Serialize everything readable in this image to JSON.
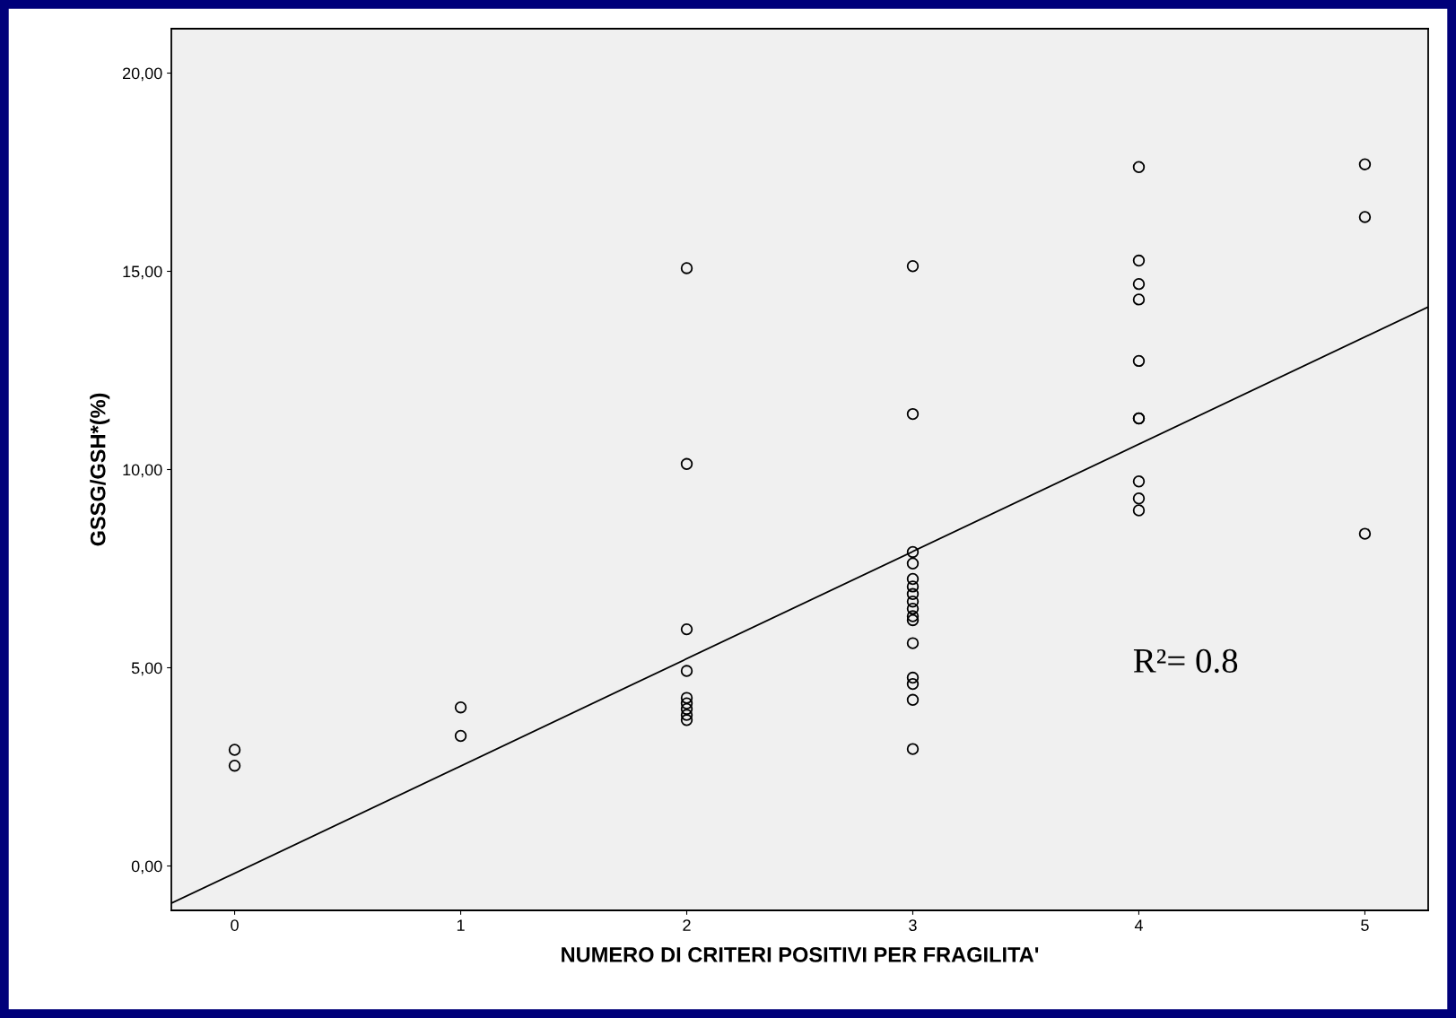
{
  "chart_data": {
    "type": "scatter",
    "xlabel": "NUMERO DI CRITERI POSITIVI PER FRAGILITA'",
    "ylabel": "GSSG/GSH*(%)",
    "annotations": [
      "R²= 0.8"
    ],
    "series": [
      {
        "color": "#000000",
        "marker": "circle",
        "x": [
          0,
          0,
          1,
          1,
          2,
          2,
          2,
          2,
          2,
          2,
          2,
          2,
          2,
          3,
          3,
          3,
          3,
          3,
          3,
          3,
          3,
          3,
          3,
          3,
          3,
          3,
          3,
          3,
          3,
          4,
          4,
          4,
          4,
          4,
          4,
          4,
          4,
          4,
          4,
          5,
          5,
          5
        ],
        "values": [
          2.93,
          2.53,
          4.0,
          3.28,
          15.08,
          10.14,
          5.97,
          4.92,
          4.24,
          4.1,
          3.96,
          3.81,
          3.68,
          15.13,
          11.4,
          7.92,
          7.63,
          7.24,
          7.05,
          6.86,
          6.67,
          6.49,
          6.3,
          6.2,
          5.62,
          4.75,
          4.59,
          4.19,
          2.95,
          17.63,
          15.27,
          14.68,
          14.29,
          12.74,
          11.29,
          11.29,
          9.7,
          9.27,
          8.97,
          17.7,
          16.37,
          8.38
        ]
      },
      {
        "type": "line",
        "color": "#000000",
        "marker": "none",
        "x": [
          -0.28,
          5.28
        ],
        "values": [
          -0.94,
          14.1
        ]
      }
    ],
    "xlim": [
      -0.28,
      5.28
    ],
    "ylim": [
      -1.12,
      21.12
    ],
    "xticks": [
      0,
      1,
      2,
      3,
      4,
      5
    ],
    "yticks": [
      {
        "value": 0,
        "label": "0,00"
      },
      {
        "value": 5,
        "label": "5,00"
      },
      {
        "value": 10,
        "label": "10,00"
      },
      {
        "value": 15,
        "label": "15,00"
      },
      {
        "value": 20,
        "label": "20,00"
      }
    ],
    "grid": false,
    "legend": false
  }
}
